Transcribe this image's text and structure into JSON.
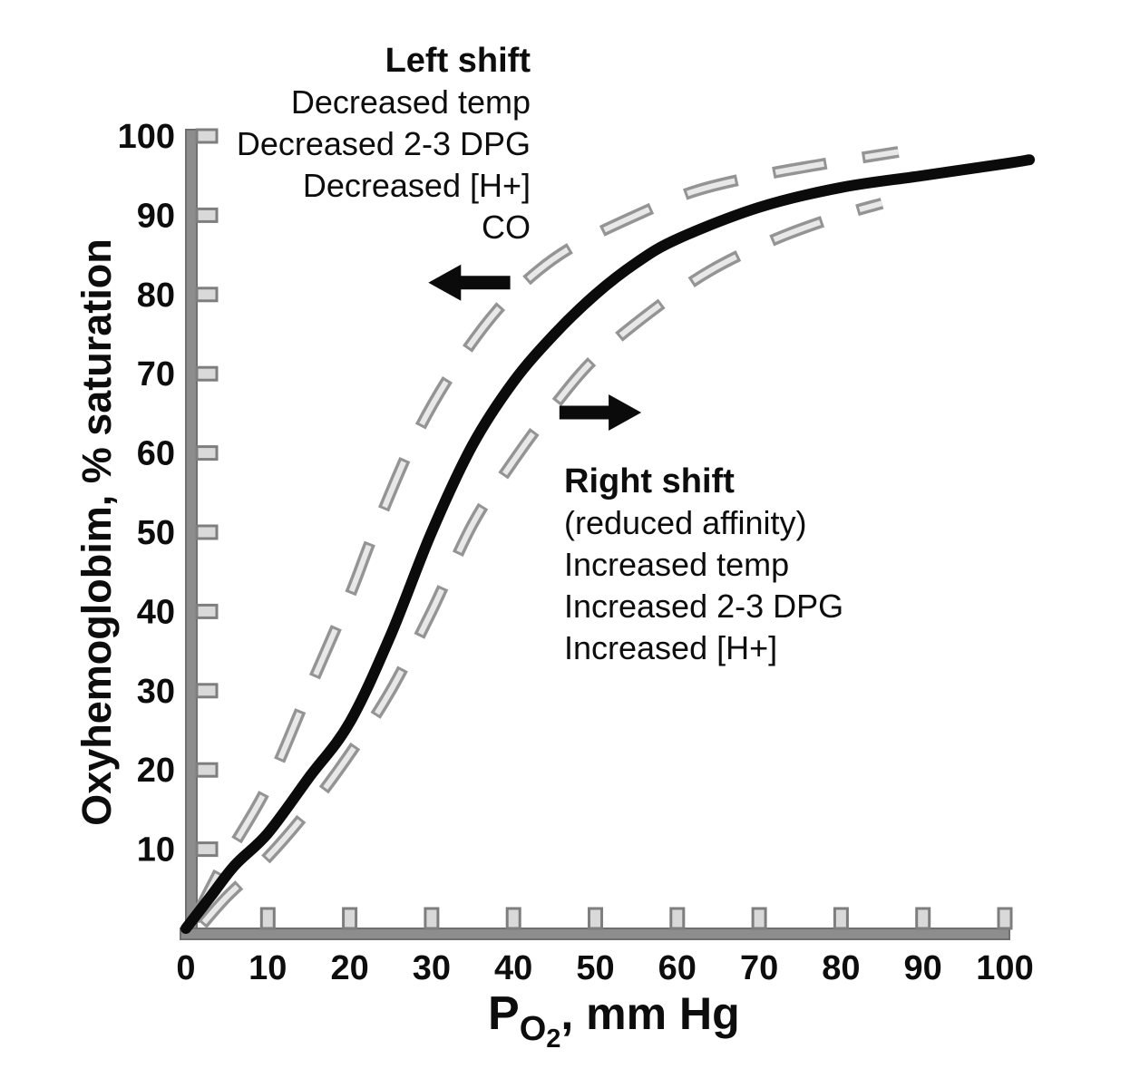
{
  "chart_data": {
    "type": "line",
    "ylabel": "Oxyhemoglobim, % saturation",
    "xlabel": {
      "symbol": "P",
      "sub": "O",
      "subsub": "2",
      "rest": ", mm Hg"
    },
    "xlim": [
      0,
      100
    ],
    "ylim": [
      0,
      100
    ],
    "x_ticks": [
      0,
      10,
      20,
      30,
      40,
      50,
      60,
      70,
      80,
      90,
      100
    ],
    "y_ticks": [
      10,
      20,
      30,
      40,
      50,
      60,
      70,
      80,
      90,
      100
    ],
    "grid": false,
    "legend": "none",
    "colors": {
      "normal_curve": "#0b0b0b",
      "shifted_curves": "#949494",
      "shifted_core": "#e8e8e8",
      "axis": "#8d8d8d",
      "axis_edge": "#6f6f6f",
      "tick_fill": "#d9d9d9",
      "tick_edge": "#7e7e7e",
      "text": "#0d0d0d"
    },
    "series": [
      {
        "name": "normal-curve",
        "style": "solid",
        "points": [
          [
            0,
            0
          ],
          [
            3,
            4
          ],
          [
            6,
            8
          ],
          [
            10,
            12
          ],
          [
            15,
            19
          ],
          [
            20,
            26
          ],
          [
            25,
            37
          ],
          [
            30,
            50
          ],
          [
            35,
            61
          ],
          [
            40,
            69
          ],
          [
            45,
            75
          ],
          [
            50,
            80
          ],
          [
            55,
            84
          ],
          [
            60,
            87
          ],
          [
            70,
            91
          ],
          [
            80,
            93.5
          ],
          [
            90,
            95
          ],
          [
            100,
            96.5
          ],
          [
            103,
            97
          ]
        ]
      },
      {
        "name": "left-shifted-curve",
        "style": "dashed",
        "points": [
          [
            1,
            1
          ],
          [
            5,
            9
          ],
          [
            10,
            18
          ],
          [
            15,
            30
          ],
          [
            20,
            42
          ],
          [
            23,
            50
          ],
          [
            28,
            62
          ],
          [
            33,
            71
          ],
          [
            38,
            78
          ],
          [
            43,
            83
          ],
          [
            48,
            86.5
          ],
          [
            55,
            90
          ],
          [
            62,
            93
          ],
          [
            70,
            95
          ],
          [
            78,
            96.5
          ],
          [
            87,
            98
          ]
        ]
      },
      {
        "name": "right-shifted-curve",
        "style": "dashed",
        "points": [
          [
            2,
            0.5
          ],
          [
            5,
            4
          ],
          [
            10,
            9
          ],
          [
            15,
            15
          ],
          [
            20,
            22
          ],
          [
            25,
            30
          ],
          [
            30,
            40
          ],
          [
            35,
            51
          ],
          [
            40,
            59
          ],
          [
            45,
            66
          ],
          [
            50,
            72
          ],
          [
            57,
            78
          ],
          [
            64,
            83
          ],
          [
            72,
            87
          ],
          [
            80,
            90
          ],
          [
            85,
            91.5
          ]
        ]
      }
    ],
    "annotations": {
      "left_shift": {
        "title": "Left shift",
        "lines": [
          "Decreased temp",
          "Decreased 2-3 DPG",
          "Decreased [H+]",
          "CO"
        ]
      },
      "right_shift": {
        "title": "Right shift",
        "lines": [
          "(reduced affinity)",
          "Increased temp",
          "Increased 2-3 DPG",
          "Increased [H+]"
        ]
      },
      "arrows": [
        {
          "name": "left-shift-arrow",
          "direction": "left",
          "x_from": 39.6,
          "x_to": 29.6,
          "y": 81.5
        },
        {
          "name": "right-shift-arrow",
          "direction": "right",
          "x_from": 45.6,
          "x_to": 55.6,
          "y": 65.1
        }
      ]
    }
  }
}
